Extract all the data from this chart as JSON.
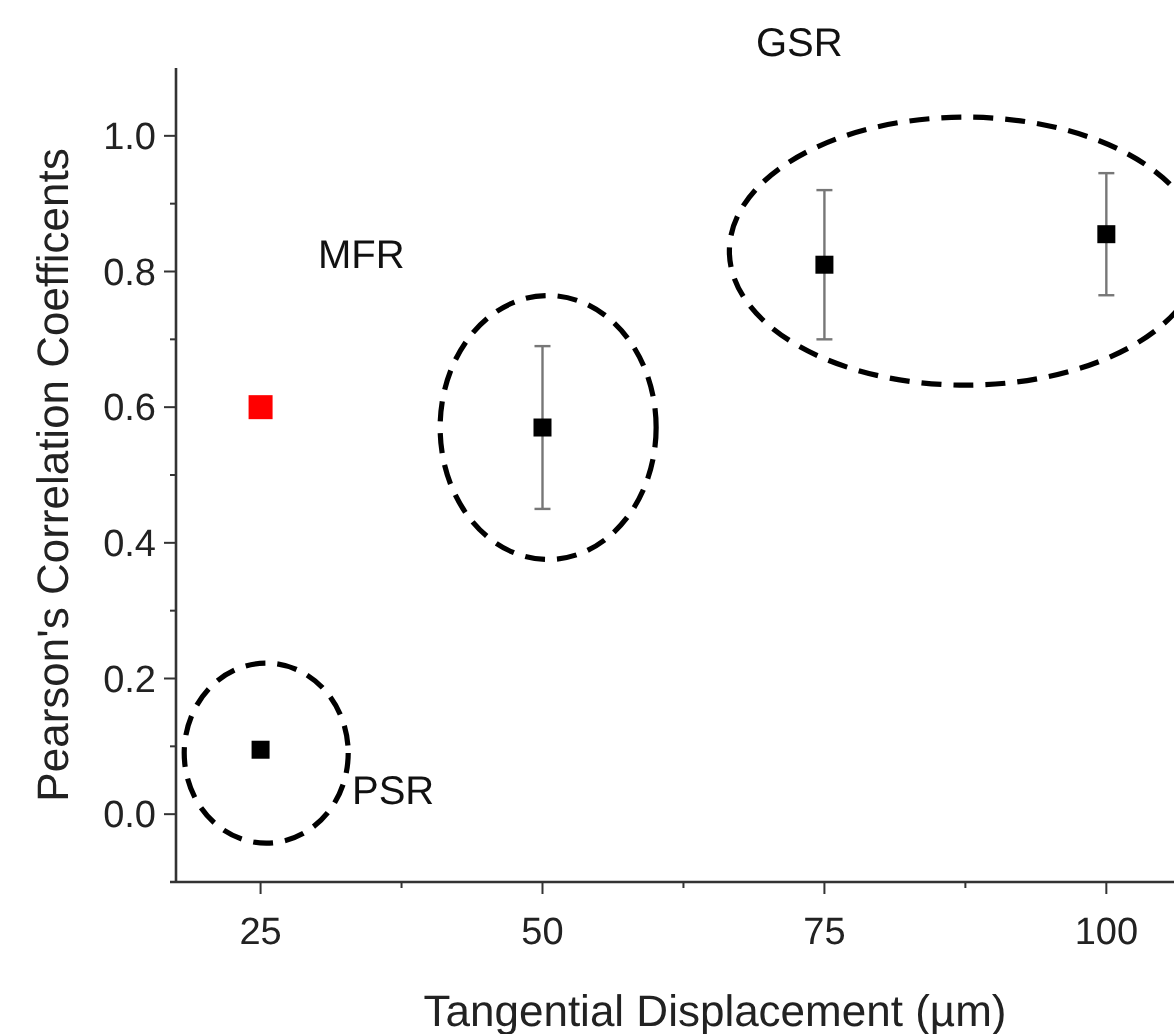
{
  "chart_data": {
    "type": "scatter",
    "xlabel": "Tangential Displacement (µm)",
    "ylabel": "Pearson's Correlation Coefficents",
    "xlim": [
      17.5,
      106
    ],
    "ylim": [
      -0.1,
      1.1
    ],
    "xticks": [
      25,
      {
        "value": 37.5,
        "label": null
      },
      50,
      {
        "value": 62.5,
        "label": null
      },
      75,
      {
        "value": 87.5,
        "label": null
      },
      100
    ],
    "yticks": [
      {
        "value": 0,
        "label": "0.0"
      },
      {
        "value": 0.1,
        "label": null
      },
      0.2,
      {
        "value": 0.3,
        "label": null
      },
      0.4,
      {
        "value": 0.5,
        "label": null
      },
      0.6,
      {
        "value": 0.7,
        "label": null
      },
      0.8,
      {
        "value": 0.9,
        "label": null
      },
      {
        "value": 1,
        "label": "1.0"
      }
    ],
    "marker": "square",
    "grid": false,
    "series": [
      {
        "color": "#ff0000",
        "x": [
          25
        ],
        "values": [
          0.6
        ]
      },
      {
        "color": "#000000",
        "x": [
          25,
          50,
          75,
          100
        ],
        "values": [
          0.095,
          0.57,
          0.81,
          0.855
        ],
        "errors": [
          null,
          0.12,
          0.11,
          0.09
        ]
      }
    ],
    "annotations": [
      "MFR",
      "PSR",
      "GSR"
    ]
  }
}
